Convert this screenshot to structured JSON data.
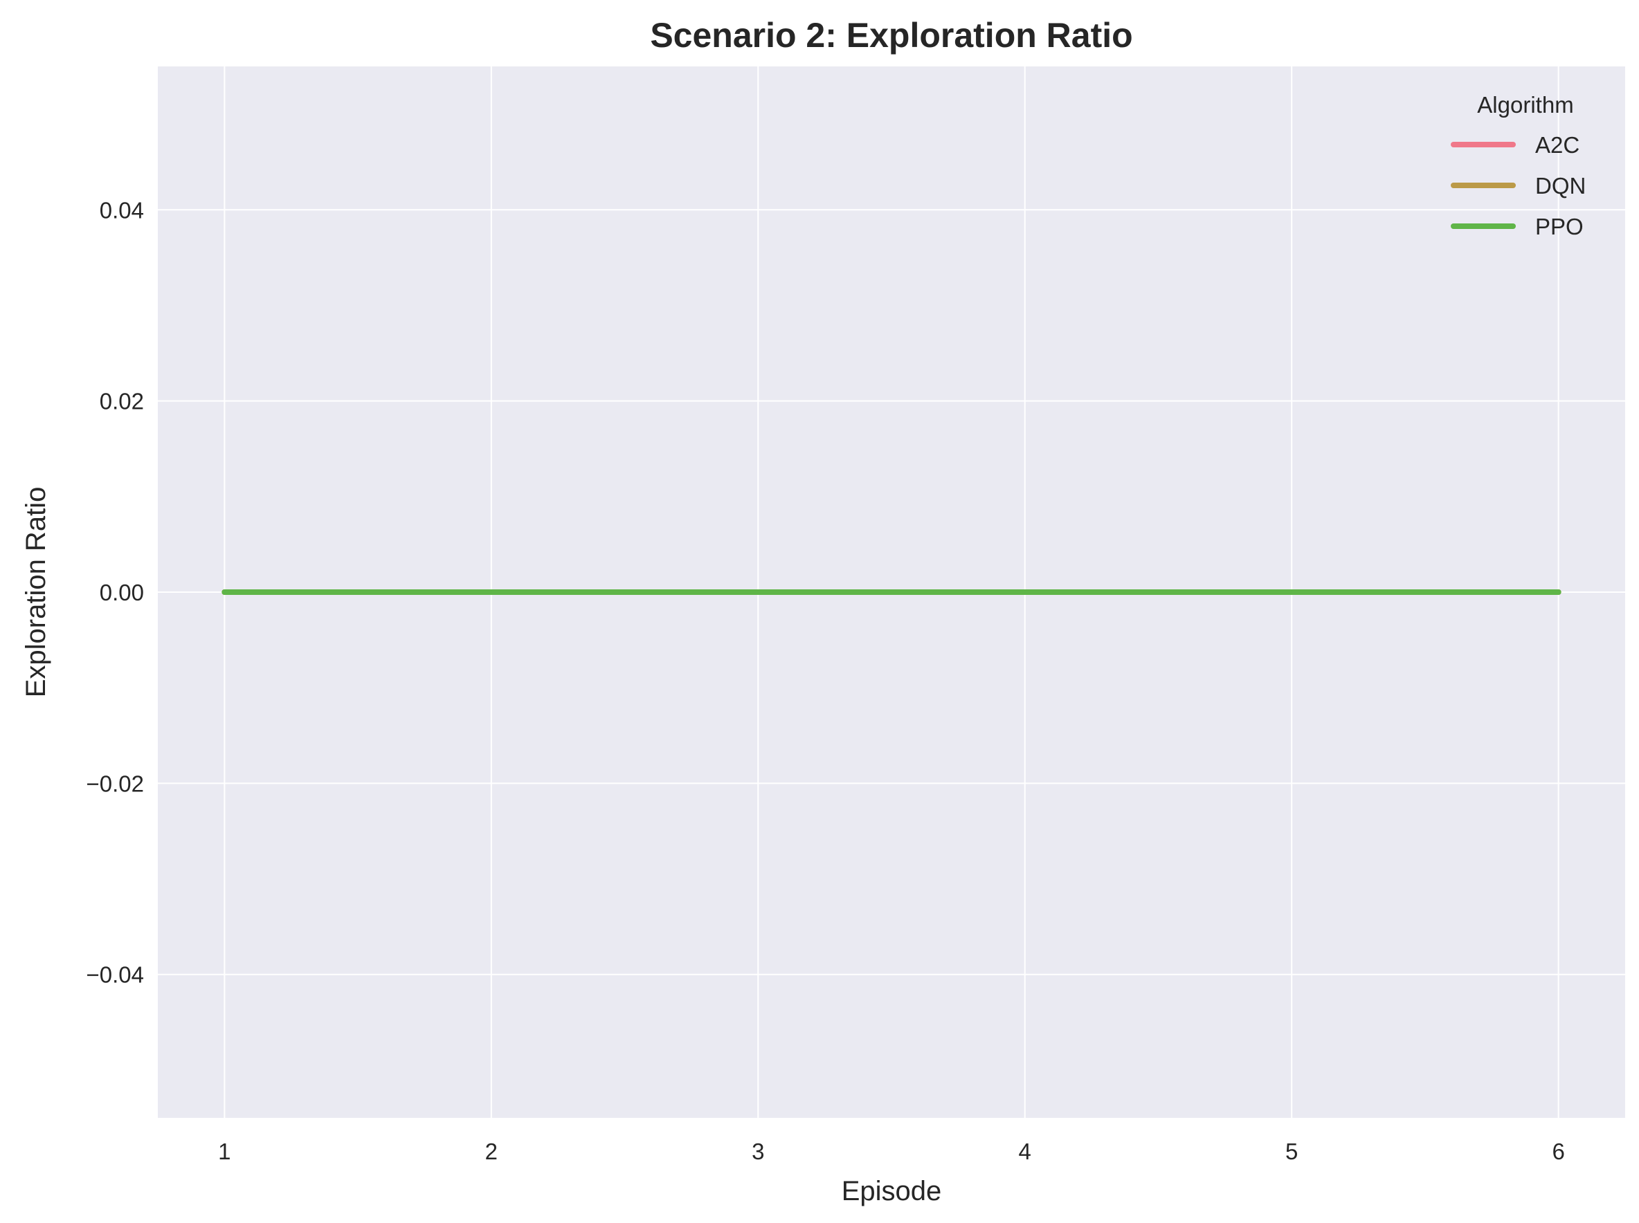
{
  "chart_data": {
    "type": "line",
    "title": "Scenario 2: Exploration Ratio",
    "xlabel": "Episode",
    "ylabel": "Exploration Ratio",
    "x": [
      1,
      2,
      3,
      4,
      5,
      6
    ],
    "xticks": [
      "1",
      "2",
      "3",
      "4",
      "5",
      "6"
    ],
    "yticks": [
      -0.04,
      -0.02,
      0.0,
      0.02,
      0.04
    ],
    "ytick_labels": [
      "−0.04",
      "−0.02",
      "0.00",
      "0.02",
      "0.04"
    ],
    "xlim": [
      0.75,
      6.25
    ],
    "ylim": [
      -0.055,
      0.055
    ],
    "grid": true,
    "background": "#eaeaf2",
    "legend": {
      "title": "Algorithm",
      "placement": "top-right"
    },
    "series": [
      {
        "name": "A2C",
        "color": "#f0788a",
        "values": [
          0,
          0,
          0,
          0,
          0,
          0
        ]
      },
      {
        "name": "DQN",
        "color": "#bb9a48",
        "values": [
          0,
          0,
          0,
          0,
          0,
          0
        ]
      },
      {
        "name": "PPO",
        "color": "#5fb548",
        "values": [
          0,
          0,
          0,
          0,
          0,
          0
        ]
      }
    ]
  }
}
